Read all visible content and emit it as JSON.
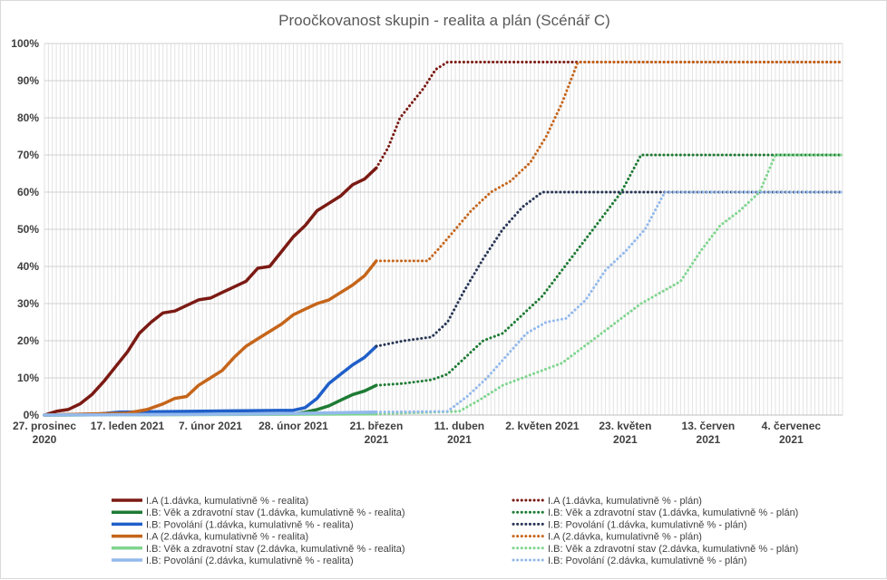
{
  "chart_data": {
    "type": "line",
    "title": "Proočkovanost skupin - realita a plán (Scénář C)",
    "xlabel": "",
    "ylabel": "",
    "x_start": "2020-12-27",
    "x_end": "2021-07-17",
    "ylim": [
      0,
      100
    ],
    "yticks": [
      0,
      10,
      20,
      30,
      40,
      50,
      60,
      70,
      80,
      90,
      100
    ],
    "ytick_labels": [
      "0%",
      "10%",
      "20%",
      "30%",
      "40%",
      "50%",
      "60%",
      "70%",
      "80%",
      "90%",
      "100%"
    ],
    "xticks": [
      {
        "date": "2020-12-27",
        "label1": "27. prosinec",
        "label2": "2020"
      },
      {
        "date": "2021-01-17",
        "label1": "17. leden 2021",
        "label2": ""
      },
      {
        "date": "2021-02-07",
        "label1": "7. únor 2021",
        "label2": ""
      },
      {
        "date": "2021-02-28",
        "label1": "28. únor 2021",
        "label2": ""
      },
      {
        "date": "2021-03-21",
        "label1": "21. březen",
        "label2": "2021"
      },
      {
        "date": "2021-04-11",
        "label1": "11. duben",
        "label2": "2021"
      },
      {
        "date": "2021-05-02",
        "label1": "2. květen 2021",
        "label2": ""
      },
      {
        "date": "2021-05-23",
        "label1": "23. květen",
        "label2": "2021"
      },
      {
        "date": "2021-06-13",
        "label1": "13. červen",
        "label2": "2021"
      },
      {
        "date": "2021-07-04",
        "label1": "4. červenec",
        "label2": "2021"
      }
    ],
    "grid": true,
    "legend_position": "bottom",
    "series": [
      {
        "name": "I.A (1.dávka, kumulativně % - realita)",
        "color": "#7b1a14",
        "style": "solid",
        "x": [
          "2020-12-27",
          "2020-12-30",
          "2021-01-02",
          "2021-01-05",
          "2021-01-08",
          "2021-01-11",
          "2021-01-14",
          "2021-01-17",
          "2021-01-20",
          "2021-01-23",
          "2021-01-26",
          "2021-01-29",
          "2021-02-01",
          "2021-02-04",
          "2021-02-07",
          "2021-02-10",
          "2021-02-13",
          "2021-02-16",
          "2021-02-19",
          "2021-02-22",
          "2021-02-25",
          "2021-02-28",
          "2021-03-03",
          "2021-03-06",
          "2021-03-09",
          "2021-03-12",
          "2021-03-15",
          "2021-03-18",
          "2021-03-21"
        ],
        "y": [
          0,
          1,
          1.5,
          3,
          5.5,
          9,
          13,
          17,
          22,
          25,
          27.5,
          28,
          29.5,
          31,
          31.5,
          33,
          34.5,
          36,
          39.5,
          40,
          44,
          48,
          51,
          55,
          57,
          59,
          62,
          63.5,
          66.5
        ]
      },
      {
        "name": "I.B: Věk a zdravotní stav (1.dávka, kumulativně % - realita)",
        "color": "#1e7b34",
        "style": "solid",
        "x": [
          "2020-12-27",
          "2021-02-28",
          "2021-03-03",
          "2021-03-06",
          "2021-03-09",
          "2021-03-12",
          "2021-03-15",
          "2021-03-18",
          "2021-03-21"
        ],
        "y": [
          0,
          0.3,
          0.8,
          1.5,
          2.5,
          4,
          5.5,
          6.5,
          8
        ]
      },
      {
        "name": "I.B: Povolání (1.dávka, kumulativně % - realita)",
        "color": "#1f5fc9",
        "style": "solid",
        "x": [
          "2020-12-27",
          "2021-01-10",
          "2021-01-15",
          "2021-02-28",
          "2021-03-03",
          "2021-03-06",
          "2021-03-09",
          "2021-03-12",
          "2021-03-15",
          "2021-03-18",
          "2021-03-21"
        ],
        "y": [
          0,
          0.3,
          0.8,
          1.3,
          2,
          4.5,
          8.5,
          11,
          13.5,
          15.5,
          18.5
        ]
      },
      {
        "name": "I.A (2.dávka, kumulativně % - realita)",
        "color": "#c5651a",
        "style": "solid",
        "x": [
          "2020-12-27",
          "2021-01-17",
          "2021-01-22",
          "2021-01-26",
          "2021-01-29",
          "2021-02-01",
          "2021-02-04",
          "2021-02-07",
          "2021-02-10",
          "2021-02-13",
          "2021-02-16",
          "2021-02-19",
          "2021-02-22",
          "2021-02-25",
          "2021-02-28",
          "2021-03-03",
          "2021-03-06",
          "2021-03-09",
          "2021-03-12",
          "2021-03-15",
          "2021-03-18",
          "2021-03-21"
        ],
        "y": [
          0,
          0.5,
          1.5,
          3,
          4.5,
          5,
          8,
          10,
          12,
          15.5,
          18.5,
          20.5,
          22.5,
          24.5,
          27,
          28.5,
          30,
          31,
          33,
          35,
          37.5,
          41.5
        ]
      },
      {
        "name": "I.B: Věk a zdravotní stav (2.dávka, kumulativně % - realita)",
        "color": "#7fd58f",
        "style": "solid",
        "x": [
          "2020-12-27",
          "2021-03-21"
        ],
        "y": [
          0,
          0.3
        ]
      },
      {
        "name": "I.B: Povolání (2.dávka, kumulativně % - realita)",
        "color": "#93b9ec",
        "style": "solid",
        "x": [
          "2020-12-27",
          "2021-02-20",
          "2021-03-21"
        ],
        "y": [
          0,
          0.3,
          0.8
        ]
      },
      {
        "name": "I.A (1.dávka, kumulativně % - plán)",
        "color": "#7b1a14",
        "style": "dotted",
        "x": [
          "2021-03-21",
          "2021-03-24",
          "2021-03-27",
          "2021-03-30",
          "2021-04-02",
          "2021-04-05",
          "2021-04-08",
          "2021-07-17"
        ],
        "y": [
          66.5,
          72,
          80,
          84,
          88,
          93,
          95,
          95
        ]
      },
      {
        "name": "I.B: Věk a zdravotní stav (1.dávka, kumulativně % - plán)",
        "color": "#1e7b34",
        "style": "dotted",
        "x": [
          "2021-03-21",
          "2021-03-28",
          "2021-04-04",
          "2021-04-08",
          "2021-04-12",
          "2021-04-17",
          "2021-04-22",
          "2021-04-27",
          "2021-05-02",
          "2021-05-07",
          "2021-05-12",
          "2021-05-17",
          "2021-05-22",
          "2021-05-27",
          "2021-07-17"
        ],
        "y": [
          8,
          8.5,
          9.5,
          11,
          15,
          20,
          22,
          27,
          32,
          39,
          46,
          53,
          60,
          70,
          70
        ]
      },
      {
        "name": "I.B: Povolání (1.dávka, kumulativně % - plán)",
        "color": "#283655",
        "style": "dotted",
        "x": [
          "2021-03-21",
          "2021-03-28",
          "2021-04-04",
          "2021-04-08",
          "2021-04-12",
          "2021-04-17",
          "2021-04-22",
          "2021-04-27",
          "2021-05-02",
          "2021-07-17"
        ],
        "y": [
          18.5,
          20,
          21,
          25,
          33,
          42,
          50,
          56,
          60,
          60
        ]
      },
      {
        "name": "I.A (2.dávka, kumulativně % - plán)",
        "color": "#c5651a",
        "style": "dotted",
        "x": [
          "2021-03-21",
          "2021-04-03",
          "2021-04-06",
          "2021-04-10",
          "2021-04-14",
          "2021-04-19",
          "2021-04-24",
          "2021-04-29",
          "2021-05-03",
          "2021-05-07",
          "2021-05-11",
          "2021-07-17"
        ],
        "y": [
          41.5,
          41.5,
          45,
          50,
          55,
          60,
          63,
          68,
          75,
          84,
          95,
          95
        ]
      },
      {
        "name": "I.B: Věk a zdravotní stav (2.dávka, kumulativně % - plán)",
        "color": "#7fd58f",
        "style": "dotted",
        "x": [
          "2021-03-21",
          "2021-04-11",
          "2021-04-16",
          "2021-04-22",
          "2021-04-27",
          "2021-05-02",
          "2021-05-07",
          "2021-05-12",
          "2021-05-17",
          "2021-05-22",
          "2021-05-27",
          "2021-06-01",
          "2021-06-06",
          "2021-06-11",
          "2021-06-16",
          "2021-06-21",
          "2021-06-26",
          "2021-06-30",
          "2021-07-17"
        ],
        "y": [
          0.3,
          1,
          4,
          8,
          10,
          12,
          14,
          18,
          22,
          26,
          30,
          33,
          36,
          44,
          51,
          55,
          60,
          70,
          70
        ]
      },
      {
        "name": "I.B: Povolání (2.dávka, kumulativně % - plán)",
        "color": "#93b9ec",
        "style": "dotted",
        "x": [
          "2021-03-21",
          "2021-04-08",
          "2021-04-13",
          "2021-04-18",
          "2021-04-23",
          "2021-04-28",
          "2021-05-03",
          "2021-05-08",
          "2021-05-13",
          "2021-05-18",
          "2021-05-23",
          "2021-05-28",
          "2021-06-02",
          "2021-07-17"
        ],
        "y": [
          0.8,
          1,
          5,
          10,
          16,
          22,
          25,
          26,
          31,
          39,
          44,
          50,
          60,
          60
        ]
      }
    ]
  }
}
